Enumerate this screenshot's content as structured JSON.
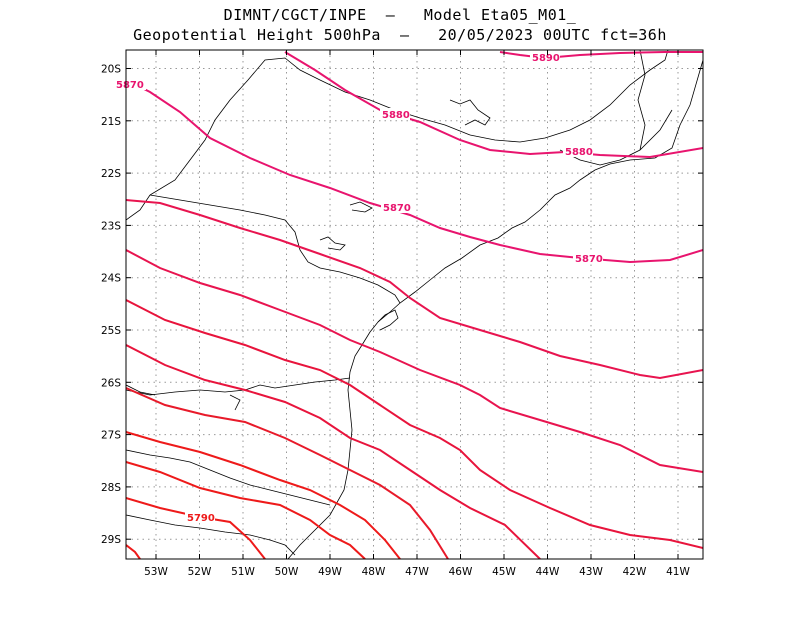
{
  "title": {
    "line1": "DIMNT/CGCT/INPE  –   Model Eta05_M01_",
    "line2": "Geopotential Height 500hPa  –   20/05/2023 00UTC fct=36h"
  },
  "lat_ticks": [
    "20S",
    "21S",
    "22S",
    "23S",
    "24S",
    "25S",
    "26S",
    "27S",
    "28S",
    "29S"
  ],
  "lon_ticks": [
    "53W",
    "52W",
    "51W",
    "50W",
    "49W",
    "48W",
    "47W",
    "46W",
    "45W",
    "44W",
    "43W",
    "42W",
    "41W"
  ],
  "contour_labels": {
    "c5890": "5890",
    "c5880a": "5880",
    "c5880b": "5880",
    "c5870a": "5870",
    "c5870b": "5870",
    "c5870c": "5870",
    "c5790": "5790"
  },
  "colors": {
    "magenta": "#e8146e",
    "crimson": "#e8143c",
    "red": "#ee1a1a",
    "grid": "#999999",
    "coast": "#000000"
  }
}
